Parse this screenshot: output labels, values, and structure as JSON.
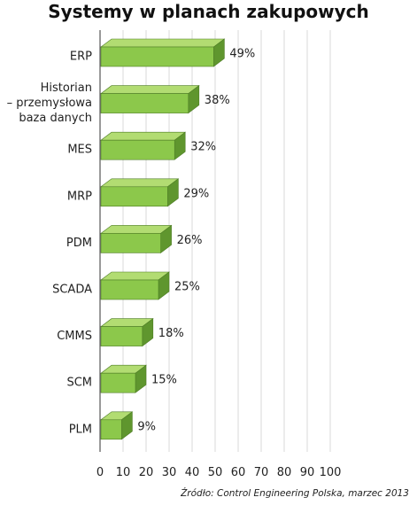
{
  "title": "Systemy w planach zakupowych",
  "source": "Źródło: Control Engineering Polska, marzec 2013",
  "colors": {
    "front": "#8cc84b",
    "top": "#b2dc72",
    "side": "#5f962e",
    "grid": "#d9d9d9",
    "axis": "#333333"
  },
  "chart_data": {
    "type": "bar",
    "orientation": "horizontal",
    "style": "3d",
    "categories": [
      [
        "ERP"
      ],
      [
        "Historian",
        "– przemysłowa",
        "baza danych"
      ],
      [
        "MES"
      ],
      [
        "MRP"
      ],
      [
        "PDM"
      ],
      [
        "SCADA"
      ],
      [
        "CMMS"
      ],
      [
        "SCM"
      ],
      [
        "PLM"
      ]
    ],
    "values": [
      49,
      38,
      32,
      29,
      26,
      25,
      18,
      15,
      9
    ],
    "value_labels": [
      "49%",
      "38%",
      "32%",
      "29%",
      "26%",
      "25%",
      "18%",
      "15%",
      "9%"
    ],
    "xlim": [
      0,
      100
    ],
    "xticks": [
      0,
      10,
      20,
      30,
      40,
      50,
      60,
      70,
      80,
      90,
      100
    ],
    "grid": true
  }
}
